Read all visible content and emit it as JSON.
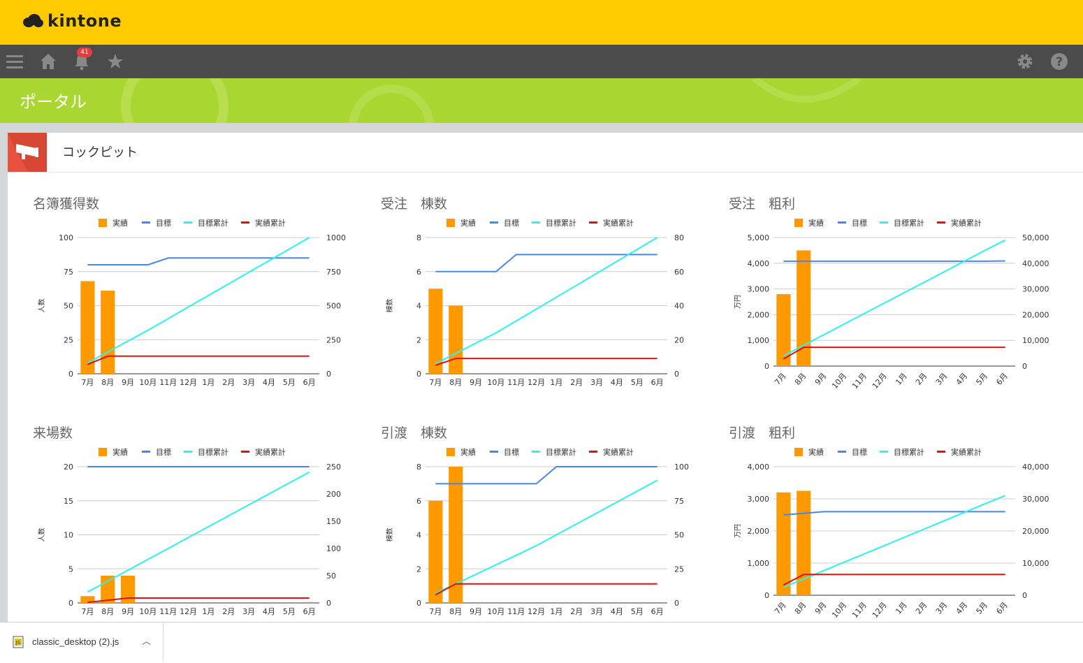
{
  "header": {
    "logo_text": "kintone",
    "notification_count": "41"
  },
  "banner": {
    "title": "ポータル"
  },
  "panel": {
    "title": "コックピット"
  },
  "legend": {
    "labels": [
      "実績",
      "目標",
      "目標累計",
      "実績累計"
    ]
  },
  "colors": {
    "bar": "#ff9900",
    "target": "#4a86e8",
    "target_cum": "#2af2f2",
    "actual_cum": "#e01010",
    "topbar": "#ffcb00",
    "banner": "#aad631"
  },
  "months": [
    "7月",
    "8月",
    "9月",
    "10月",
    "11月",
    "12月",
    "1月",
    "2月",
    "3月",
    "4月",
    "5月",
    "6月"
  ],
  "download": {
    "filename": "classic_desktop (2).js"
  },
  "chart_data": [
    {
      "type": "bar",
      "title": "名簿獲得数",
      "ylabel": "人数",
      "ylim": [
        0,
        100
      ],
      "yticks": [
        "0",
        "25",
        "50",
        "75",
        "100"
      ],
      "y2lim": [
        0,
        1000
      ],
      "y2ticks": [
        "0",
        "250",
        "500",
        "750",
        "1000"
      ],
      "series": [
        {
          "name": "実績",
          "axis": "left",
          "values": [
            68,
            61
          ]
        },
        {
          "name": "目標",
          "axis": "left",
          "values": [
            80,
            80,
            80,
            80,
            85,
            85,
            85,
            85,
            85,
            85,
            85,
            85
          ]
        },
        {
          "name": "目標累計",
          "axis": "right",
          "values": [
            80,
            160,
            240,
            320,
            405,
            490,
            575,
            660,
            745,
            830,
            915,
            1000
          ]
        },
        {
          "name": "実績累計",
          "axis": "right",
          "values": [
            68,
            129,
            129,
            129,
            129,
            129,
            129,
            129,
            129,
            129,
            129,
            129
          ]
        }
      ]
    },
    {
      "type": "bar",
      "title": "受注　棟数",
      "ylabel": "棟数",
      "ylim": [
        0,
        8
      ],
      "yticks": [
        "0",
        "2",
        "4",
        "6",
        "8"
      ],
      "y2lim": [
        0,
        80
      ],
      "y2ticks": [
        "0",
        "20",
        "40",
        "60",
        "80"
      ],
      "series": [
        {
          "name": "実績",
          "axis": "left",
          "values": [
            5,
            4
          ]
        },
        {
          "name": "目標",
          "axis": "left",
          "values": [
            6,
            6,
            6,
            6,
            7,
            7,
            7,
            7,
            7,
            7,
            7,
            7
          ]
        },
        {
          "name": "目標累計",
          "axis": "right",
          "values": [
            6,
            12,
            18,
            24,
            31,
            38,
            45,
            52,
            59,
            66,
            73,
            80
          ]
        },
        {
          "name": "実績累計",
          "axis": "right",
          "values": [
            5,
            9,
            9,
            9,
            9,
            9,
            9,
            9,
            9,
            9,
            9,
            9
          ]
        }
      ]
    },
    {
      "type": "bar",
      "title": "受注　粗利",
      "ylabel": "万円",
      "rotate_x": true,
      "ylim": [
        0,
        5000
      ],
      "yticks": [
        "0",
        "1,000",
        "2,000",
        "3,000",
        "4,000",
        "5,000"
      ],
      "y2lim": [
        0,
        50000
      ],
      "y2ticks": [
        "0",
        "10,000",
        "20,000",
        "30,000",
        "40,000",
        "50,000"
      ],
      "series": [
        {
          "name": "実績",
          "axis": "left",
          "values": [
            2800,
            4500
          ]
        },
        {
          "name": "目標",
          "axis": "left",
          "values": [
            4080,
            4080,
            4080,
            4080,
            4080,
            4080,
            4080,
            4080,
            4080,
            4080,
            4080,
            4090
          ]
        },
        {
          "name": "目標累計",
          "axis": "right",
          "values": [
            4000,
            8100,
            12200,
            16300,
            20400,
            24500,
            28600,
            32700,
            36800,
            40900,
            45000,
            49000
          ]
        },
        {
          "name": "実績累計",
          "axis": "right",
          "values": [
            2800,
            7300,
            7300,
            7300,
            7300,
            7300,
            7300,
            7300,
            7300,
            7300,
            7300,
            7300
          ]
        }
      ]
    },
    {
      "type": "bar",
      "title": "来場数",
      "ylabel": "人数",
      "ylim": [
        0,
        20
      ],
      "yticks": [
        "0",
        "5",
        "10",
        "15",
        "20"
      ],
      "y2lim": [
        0,
        250
      ],
      "y2ticks": [
        "0",
        "50",
        "100",
        "150",
        "200",
        "250"
      ],
      "series": [
        {
          "name": "実績",
          "axis": "left",
          "values": [
            1,
            4,
            4
          ]
        },
        {
          "name": "目標",
          "axis": "left",
          "values": [
            20,
            20,
            20,
            20,
            20,
            20,
            20,
            20,
            20,
            20,
            20,
            20
          ]
        },
        {
          "name": "目標累計",
          "axis": "right",
          "values": [
            20,
            40,
            60,
            80,
            100,
            120,
            140,
            160,
            180,
            200,
            220,
            240
          ]
        },
        {
          "name": "実績累計",
          "axis": "right",
          "values": [
            1,
            5,
            9,
            9,
            9,
            9,
            9,
            9,
            9,
            9,
            9,
            9
          ]
        }
      ]
    },
    {
      "type": "bar",
      "title": "引渡　棟数",
      "ylabel": "棟数",
      "ylim": [
        0,
        8
      ],
      "yticks": [
        "0",
        "2",
        "4",
        "6",
        "8"
      ],
      "y2lim": [
        0,
        100
      ],
      "y2ticks": [
        "0",
        "25",
        "50",
        "75",
        "100"
      ],
      "series": [
        {
          "name": "実績",
          "axis": "left",
          "values": [
            6,
            8
          ]
        },
        {
          "name": "目標",
          "axis": "left",
          "values": [
            7,
            7,
            7,
            7,
            7,
            7,
            8,
            8,
            8,
            8,
            8,
            8
          ]
        },
        {
          "name": "目標累計",
          "axis": "right",
          "values": [
            7,
            14,
            21,
            28,
            35,
            42,
            50,
            58,
            66,
            74,
            82,
            90
          ]
        },
        {
          "name": "実績累計",
          "axis": "right",
          "values": [
            6,
            14,
            14,
            14,
            14,
            14,
            14,
            14,
            14,
            14,
            14,
            14
          ]
        }
      ]
    },
    {
      "type": "bar",
      "title": "引渡　粗利",
      "ylabel": "万円",
      "rotate_x": true,
      "ylim": [
        0,
        4000
      ],
      "yticks": [
        "0",
        "1,000",
        "2,000",
        "3,000",
        "4,000"
      ],
      "y2lim": [
        0,
        40000
      ],
      "y2ticks": [
        "0",
        "10,000",
        "20,000",
        "30,000",
        "40,000"
      ],
      "series": [
        {
          "name": "実績",
          "axis": "left",
          "values": [
            3200,
            3250
          ]
        },
        {
          "name": "目標",
          "axis": "left",
          "values": [
            2500,
            2550,
            2600,
            2600,
            2600,
            2600,
            2600,
            2600,
            2600,
            2600,
            2600,
            2600
          ]
        },
        {
          "name": "目標累計",
          "axis": "right",
          "values": [
            2500,
            5050,
            7650,
            10250,
            12850,
            15450,
            18050,
            20650,
            23250,
            25850,
            28450,
            31000
          ]
        },
        {
          "name": "実績累計",
          "axis": "right",
          "values": [
            3200,
            6450,
            6450,
            6450,
            6450,
            6450,
            6450,
            6450,
            6450,
            6450,
            6450,
            6450
          ]
        }
      ]
    }
  ]
}
